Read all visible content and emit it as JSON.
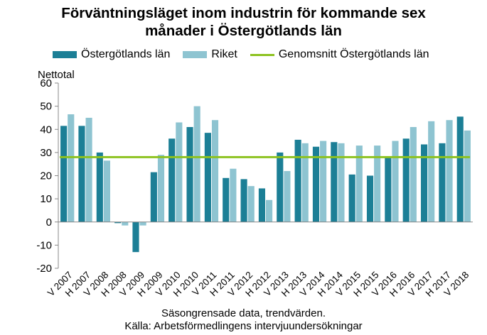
{
  "chart_data": {
    "type": "bar",
    "title_lines": [
      "Förväntningsläget inom industrin för kommande sex",
      "månader i Östergötlands län"
    ],
    "ylabel": "Nettotal",
    "ylim": [
      -20,
      60
    ],
    "yticks": [
      -20,
      -10,
      0,
      10,
      20,
      30,
      40,
      50,
      60
    ],
    "categories": [
      "V 2007",
      "H 2007",
      "V 2008",
      "H 2008",
      "V 2009",
      "H 2009",
      "V 2010",
      "H 2010",
      "V 2011",
      "H 2011",
      "V 2012",
      "H 2012",
      "V 2013",
      "H 2013",
      "V 2014",
      "H 2014",
      "V 2015",
      "H 2015",
      "V 2016",
      "H 2016",
      "V 2017",
      "H 2017",
      "V 2018"
    ],
    "series": [
      {
        "name": "Östergötlands län",
        "color": "#1c7f96",
        "values": [
          41.5,
          41.5,
          30,
          -0.5,
          -13,
          21.5,
          36,
          41,
          38.5,
          19,
          18.5,
          14.5,
          30,
          35.5,
          32.5,
          34.5,
          20.5,
          20,
          28,
          36,
          33.5,
          34,
          45.5
        ]
      },
      {
        "name": "Riket",
        "color": "#8ec4d1",
        "values": [
          46.5,
          45,
          26.5,
          -1.5,
          -1.5,
          29,
          43,
          50,
          44,
          23,
          15.5,
          9.5,
          22,
          34,
          35,
          34,
          33,
          33,
          35,
          41,
          43.5,
          44,
          39.5
        ]
      }
    ],
    "reference_line": {
      "name": "Genomsnitt Östergötlands län",
      "value": 28,
      "color": "#8dc21f"
    },
    "legend_position": "top-left",
    "grid": false,
    "footnote_1": "Säsongrensade data, trendvärden.",
    "footnote_2": "Källa: Arbetsförmedlingens intervjuundersökningar"
  }
}
